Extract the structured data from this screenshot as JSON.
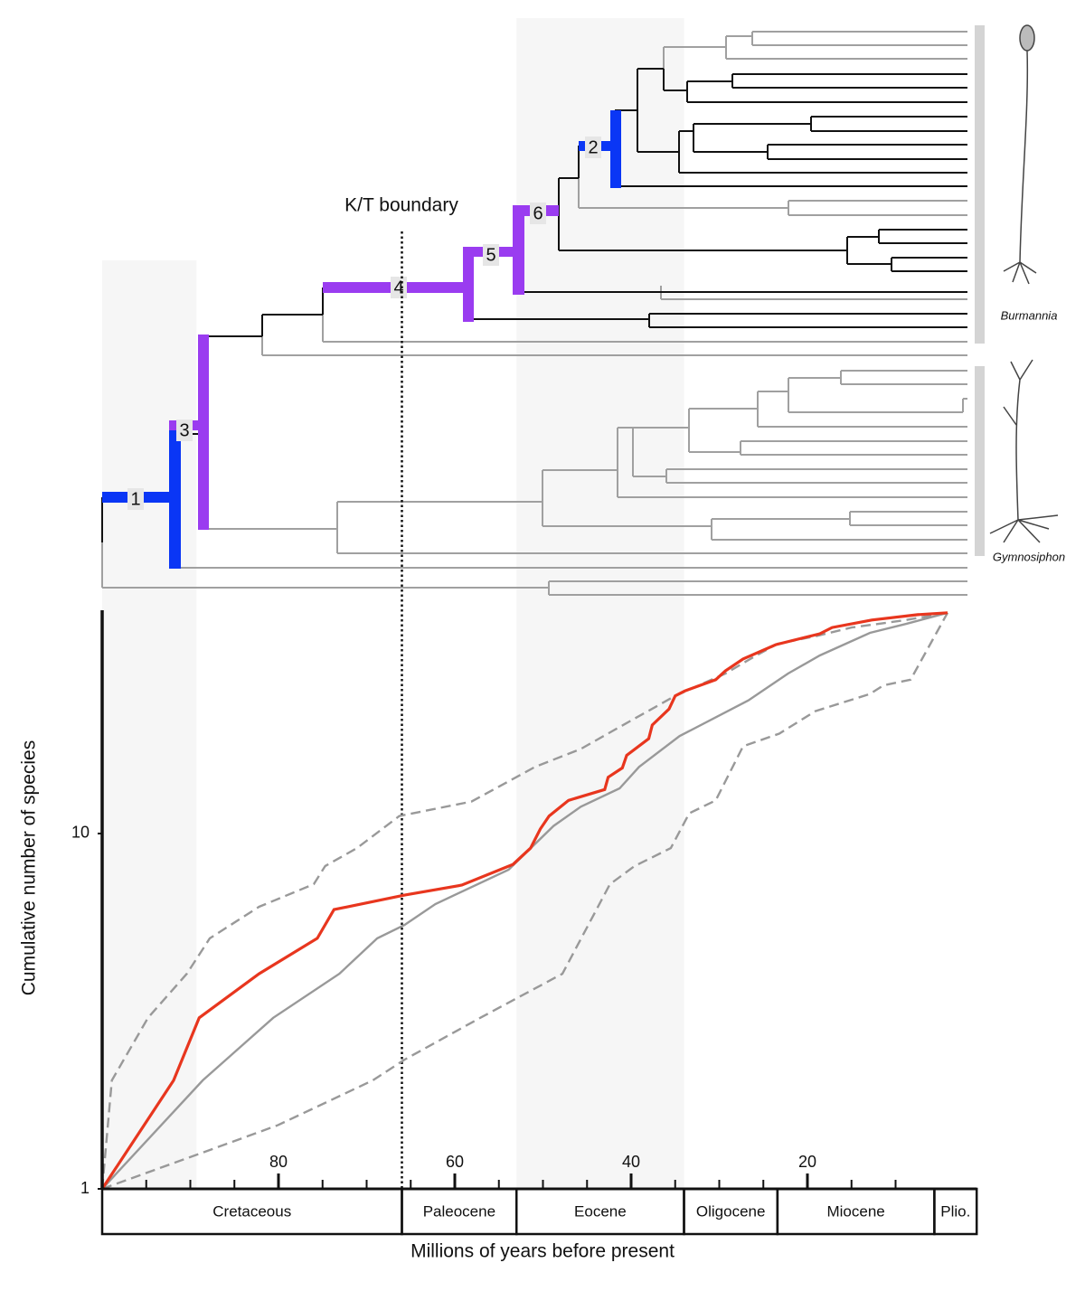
{
  "chart_data": {
    "type": "line",
    "y_label": "Cumulative number of species",
    "x_label": "Millions of years before present",
    "log_y": true,
    "xlim": [
      100,
      0
    ],
    "ylim": [
      1,
      42.5
    ],
    "xticks": [
      80,
      60,
      40,
      20
    ],
    "xminorticks": [
      95,
      90,
      85,
      75,
      70,
      65,
      55,
      50,
      45,
      35,
      30,
      25,
      15,
      10
    ],
    "yticks": [
      1,
      10
    ],
    "shaded": [
      [
        100,
        89.3
      ],
      [
        53,
        34
      ]
    ],
    "kt_boundary": 66,
    "kt_label": "K/T boundary",
    "periods": [
      {
        "name": "Cretaceous",
        "start": 100,
        "end": 66
      },
      {
        "name": "Paleocene",
        "start": 66,
        "end": 53
      },
      {
        "name": "Eocene",
        "start": 53,
        "end": 34
      },
      {
        "name": "Oligocene",
        "start": 34,
        "end": 23.4
      },
      {
        "name": "Miocene",
        "start": 23.4,
        "end": 5.6
      },
      {
        "name": "Plio.",
        "start": 5.6,
        "end": 0.8
      }
    ],
    "node_labels": [
      "1",
      "2",
      "3",
      "4",
      "5",
      "6"
    ],
    "clade_labels": [
      "Burmannia",
      "Gymnosiphon"
    ],
    "series": [
      {
        "color": "#999999",
        "dashed": true,
        "x": [
          100,
          98.9,
          94.8,
          90.4,
          87.8,
          82.2,
          76.0,
          74.7,
          71.1,
          66.3,
          58.1,
          50.9,
          45.7,
          40.6,
          35.0,
          29.3,
          26.3,
          23.4,
          19.1,
          15.0,
          8.8,
          4.1
        ],
        "values": [
          1,
          2.02,
          3.03,
          4.03,
          5.07,
          6.22,
          7.2,
          8.1,
          9.1,
          11.2,
          12.3,
          15.4,
          17.3,
          20.4,
          24.4,
          28.2,
          31.2,
          34.2,
          35.9,
          38.0,
          39.9,
          41.8
        ]
      },
      {
        "color": "#999999",
        "dashed": true,
        "x": [
          100,
          88.8,
          80.1,
          69.3,
          65.7,
          57.0,
          47.8,
          42.4,
          39.6,
          35.5,
          33.4,
          30.4,
          27.3,
          23.2,
          19.1,
          12.9,
          11.4,
          8.3,
          4.1
        ],
        "values": [
          1,
          1.26,
          1.51,
          2.02,
          2.31,
          3.04,
          4.03,
          7.2,
          8.1,
          9.1,
          11.4,
          12.4,
          17.6,
          19.1,
          22.1,
          24.7,
          26.1,
          27.1,
          41.8
        ]
      },
      {
        "color": "#999999",
        "dashed": false,
        "x": [
          100,
          88.6,
          80.6,
          73.1,
          68.8,
          65.7,
          62.2,
          53.9,
          48.8,
          45.7,
          41.3,
          39.1,
          34.5,
          26.7,
          22.2,
          18.6,
          12.9,
          8.8,
          4.1
        ],
        "values": [
          1,
          2.02,
          3.03,
          4.03,
          5.07,
          5.53,
          6.33,
          7.91,
          10.5,
          11.9,
          13.4,
          15.4,
          18.8,
          23.7,
          28.2,
          31.7,
          36.7,
          38.9,
          41.8
        ]
      },
      {
        "color": "#e8361e",
        "dashed": false,
        "x": [
          100,
          91.9,
          89.0,
          82.2,
          75.6,
          73.7,
          65.7,
          59.2,
          53.4,
          51.4,
          50.3,
          49.3,
          47.1,
          43.0,
          42.6,
          41.0,
          40.5,
          38.0,
          37.6,
          35.7,
          35.0,
          33.9,
          30.4,
          29.3,
          27.3,
          23.6,
          18.6,
          17.2,
          12.7,
          7.5,
          4.1
        ],
        "values": [
          1,
          2.02,
          3.03,
          4.03,
          5.07,
          6.11,
          6.71,
          7.16,
          8.19,
          9.1,
          10.3,
          11.2,
          12.4,
          13.3,
          14.4,
          15.3,
          16.6,
          18.5,
          20.2,
          22.4,
          24.4,
          25.2,
          27.1,
          28.7,
          31.0,
          34.0,
          36.5,
          38.0,
          39.9,
          41.3,
          41.8
        ]
      }
    ]
  }
}
